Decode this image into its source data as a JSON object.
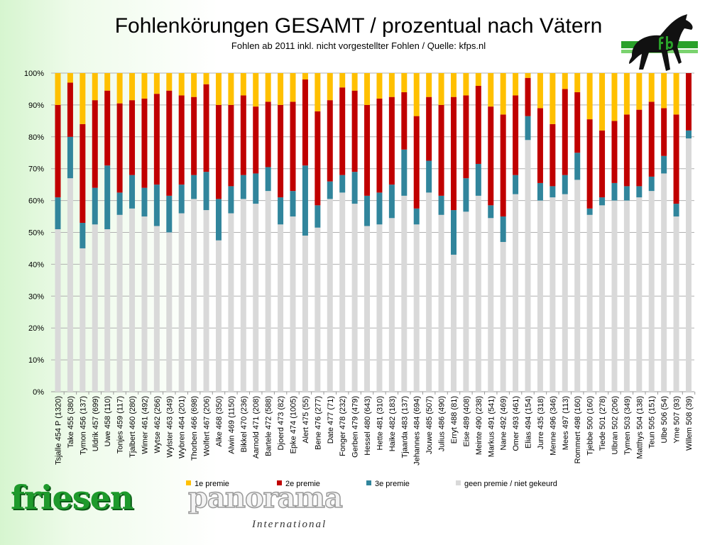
{
  "header": {
    "title": "Fohlenkörungen GESAMT / prozentual nach Vätern",
    "subtitle": "Fohlen ab 2011 inkl. nicht vorgestellter Fohlen / Quelle: kfps.nl"
  },
  "logo": {
    "horse_text": "fb",
    "brand_main": "friesen",
    "brand_second": "panorama",
    "brand_sub": "International"
  },
  "chart_data": {
    "type": "bar",
    "stacked": "percent",
    "title": "Fohlenkörungen GESAMT / prozentual nach Vätern",
    "subtitle": "Fohlen ab 2011 inkl. nicht vorgestellter Fohlen / Quelle: kfps.nl",
    "xlabel": "",
    "ylabel": "",
    "ylim": [
      0,
      100
    ],
    "yticks": [
      "0%",
      "10%",
      "20%",
      "30%",
      "40%",
      "50%",
      "60%",
      "70%",
      "80%",
      "90%",
      "100%"
    ],
    "grid": true,
    "legend_position": "bottom",
    "categories": [
      "Tsjalle 454 P (1320)",
      "Take 455 (380)",
      "Tymon 456 (137)",
      "Uldrik 457 (699)",
      "Uwe 458 (110)",
      "Tonjes 459 (117)",
      "Tjalbert 460 (280)",
      "Wimer 461 (492)",
      "Wytse 462 (266)",
      "Wylster 463 (349)",
      "Wybren 464 (201)",
      "Thorben 466 (698)",
      "Wolfert 467 (206)",
      "Alke 468 (350)",
      "Alwin 469 (1150)",
      "Bikkel 470 (236)",
      "Aarnold 471 (208)",
      "Bartele 472 (588)",
      "Djoerd 473 (82)",
      "Epke 474 (1005)",
      "Alert 475 (55)",
      "Bene 476 (277)",
      "Date 477 (71)",
      "Fonger 478 (232)",
      "Gerben 479 (479)",
      "Hessel 480 (643)",
      "Hette 481 (310)",
      "Haike 482 (183)",
      "Tjaarda 483 (137)",
      "Jehannes 484 (694)",
      "Jouwe 485 (507)",
      "Julius 486 (490)",
      "Erryt 488 (81)",
      "Eise 489 (408)",
      "Meinte 490 (238)",
      "Markus 491 (541)",
      "Nane 492 (469)",
      "Omer 493 (461)",
      "Elias 494 (154)",
      "Jurre 435 (318)",
      "Menne 496 (346)",
      "Mees 497 (113)",
      "Rommert 498 (160)",
      "Tjebbe 500 (160)",
      "Tiede 501 (278)",
      "Ulbran 502 (206)",
      "Tymen 503 (349)",
      "Matthys 504 (138)",
      "Teun 505 (151)",
      "Ulbe 506 (54)",
      "Yme 507 (93)",
      "Willem 508 (39)"
    ],
    "series": [
      {
        "name": "geen premie / niet gekeurd",
        "color": "#D9D9D9",
        "values": [
          51,
          67,
          45,
          52.5,
          51,
          55.5,
          57.5,
          55,
          52,
          50,
          56,
          60.5,
          57,
          47.5,
          56,
          60.5,
          59,
          63,
          52.5,
          55,
          49,
          51.5,
          60.5,
          62.5,
          59,
          52,
          52.5,
          54.5,
          61.5,
          52.5,
          62.5,
          55.5,
          43,
          56.5,
          61.5,
          54.5,
          47,
          62,
          79,
          60,
          61,
          62,
          66.5,
          55.5,
          58.5,
          60,
          60,
          61,
          63,
          68.5,
          55,
          79.5
        ]
      },
      {
        "name": "3e premie",
        "color": "#31859C",
        "values": [
          10,
          13,
          8,
          11.5,
          20,
          7,
          10.5,
          9,
          13,
          11.5,
          9,
          7.5,
          12,
          13,
          8.5,
          7.5,
          9.5,
          7.5,
          8.5,
          8,
          22,
          7,
          5.5,
          5.5,
          10,
          9.5,
          10,
          10.5,
          14.5,
          5,
          10,
          6,
          14,
          10.5,
          10,
          4,
          8,
          6,
          7.5,
          5.5,
          3.5,
          6,
          8.5,
          2,
          2.5,
          5.5,
          4.5,
          3.5,
          4.5,
          5.5,
          4,
          2.5
        ]
      },
      {
        "name": "2e premie",
        "color": "#C00000",
        "values": [
          29,
          17,
          31,
          27.5,
          23.5,
          28,
          23.5,
          28,
          28.5,
          33,
          28,
          24.5,
          27.5,
          29.5,
          25.5,
          25,
          21,
          20.5,
          29,
          28,
          27,
          29.5,
          25.5,
          27.5,
          25.5,
          28.5,
          29.5,
          27.5,
          18,
          29,
          20,
          28.5,
          35.5,
          26,
          24.5,
          31,
          32,
          25,
          12,
          23.5,
          19.5,
          27,
          19,
          28,
          21,
          19.5,
          22.5,
          24,
          23.5,
          15,
          28,
          18
        ]
      },
      {
        "name": "1e premie",
        "color": "#FFC000",
        "values": [
          10,
          3,
          16,
          8.5,
          5.5,
          9.5,
          8.5,
          8,
          6.5,
          5.5,
          7,
          7.5,
          3.5,
          10,
          10,
          7,
          10.5,
          9,
          10,
          9,
          2,
          12,
          8.5,
          4.5,
          5.5,
          10,
          8,
          7.5,
          6,
          13.5,
          7.5,
          10,
          7.5,
          7,
          4,
          10.5,
          13,
          7,
          1.5,
          11,
          16,
          5,
          6,
          14.5,
          18,
          15,
          13,
          11.5,
          9,
          11,
          13,
          0
        ]
      }
    ],
    "legend_order": [
      "1e premie",
      "2e premie",
      "3e premie",
      "geen premie / niet gekeurd"
    ]
  }
}
